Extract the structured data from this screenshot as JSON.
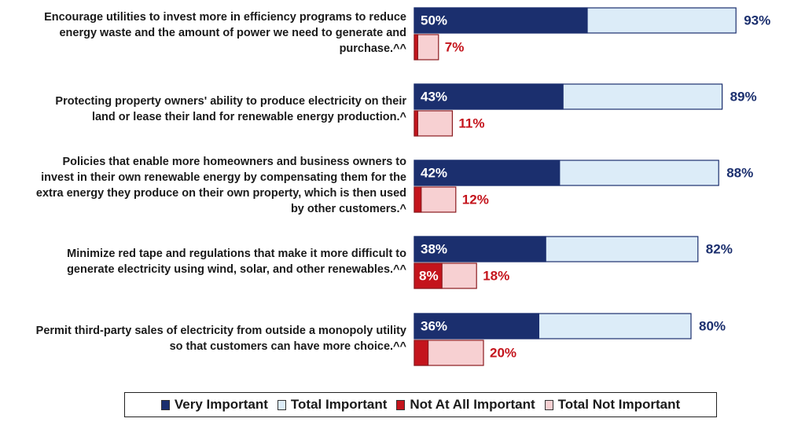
{
  "colors": {
    "very_important": "#1b2f6e",
    "total_important": "#dcecf8",
    "not_at_all_important": "#c4141c",
    "total_not_important": "#f7d0d2",
    "important_text": "#1b2f6e",
    "not_important_text": "#c4141c"
  },
  "chart_data": {
    "type": "bar",
    "orientation": "horizontal",
    "categories": [
      "Encourage utilities to invest more in efficiency programs to reduce energy waste and the amount of power we need to generate and purchase.^^",
      "Protecting property owners' ability to produce electricity on their land or lease their land for renewable energy production.^",
      "Policies that enable more homeowners and business owners to invest in their own renewable energy by compensating them for the extra energy they produce on their own property, which is then used by other customers.^",
      "Minimize red tape and regulations that make it more difficult to generate electricity using wind, solar, and other renewables.^^",
      "Permit third-party sales of electricity from outside a monopoly utility so that customers can have more choice.^^"
    ],
    "category_lines": [
      [
        "Encourage utilities to invest more in efficiency programs to reduce",
        "energy waste and the amount of power we need to generate and",
        "purchase.^^"
      ],
      [
        "Protecting property owners' ability to produce electricity on their",
        "land or lease their land for renewable energy production.^"
      ],
      [
        "Policies that enable more homeowners and business owners to",
        "invest in their own renewable energy by compensating them for the",
        "extra energy they produce on their own property, which is then used",
        "by other customers.^"
      ],
      [
        "Minimize red tape and regulations that make it more difficult to",
        "generate electricity using wind, solar, and other renewables.^^"
      ],
      [
        "Permit third-party sales of electricity from outside a monopoly utility",
        "so that customers can have more choice.^^"
      ]
    ],
    "series": [
      {
        "name": "Very Important",
        "values": [
          50,
          43,
          42,
          38,
          36
        ]
      },
      {
        "name": "Total Important",
        "values": [
          93,
          89,
          88,
          82,
          80
        ]
      },
      {
        "name": "Not At All Important",
        "values": [
          1,
          1,
          2,
          8,
          4
        ]
      },
      {
        "name": "Total Not Important",
        "values": [
          7,
          11,
          12,
          18,
          20
        ]
      }
    ],
    "data_labels": {
      "very_important": [
        "50%",
        "43%",
        "42%",
        "38%",
        "36%"
      ],
      "total_important": [
        "93%",
        "89%",
        "88%",
        "82%",
        "80%"
      ],
      "not_at_all_important": [
        "",
        "",
        "",
        "8%",
        ""
      ],
      "total_not_important": [
        "7%",
        "11%",
        "12%",
        "18%",
        "20%"
      ]
    },
    "xlim": [
      0,
      100
    ],
    "grid": false,
    "legend_position": "bottom"
  },
  "legend": {
    "very_important": "Very Important",
    "total_important": "Total Important",
    "not_at_all_important": "Not At All Important",
    "total_not_important": "Total Not Important"
  }
}
